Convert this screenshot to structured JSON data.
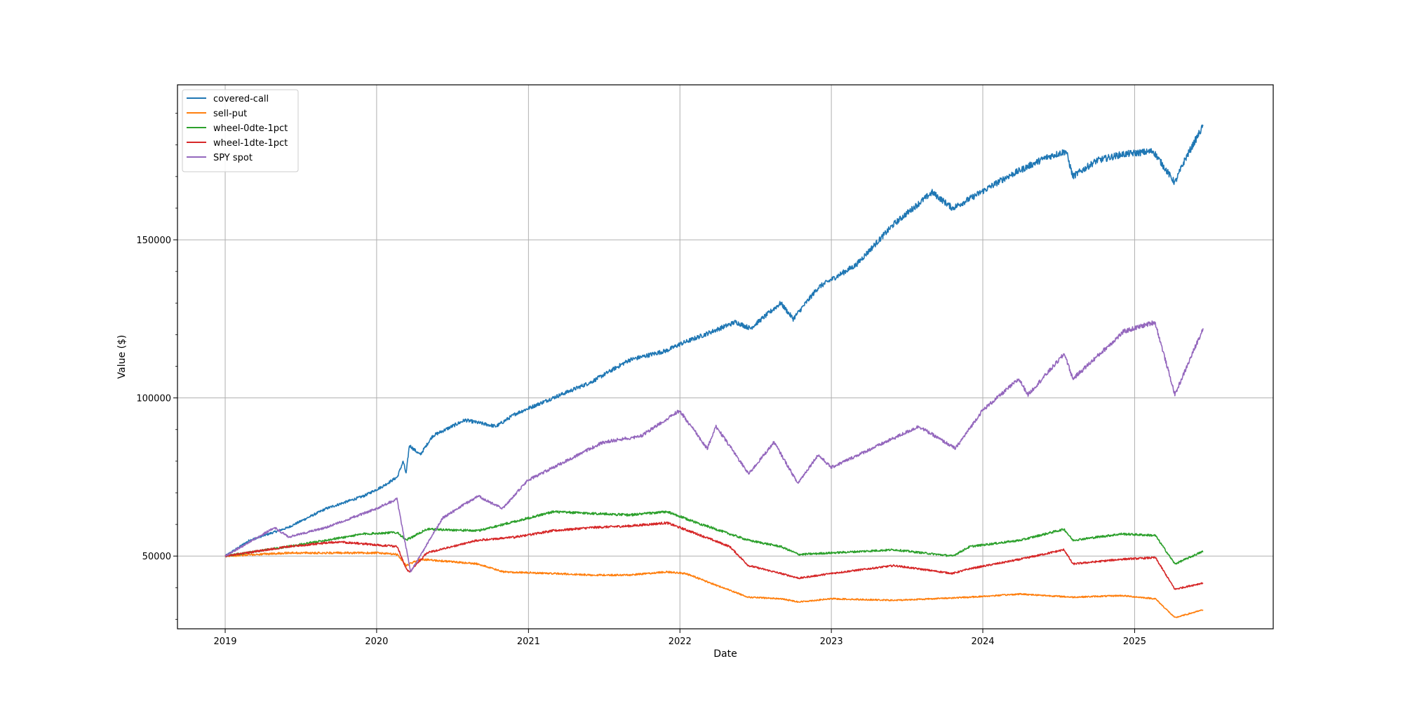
{
  "chart_data": {
    "type": "line",
    "xlabel": "Date",
    "ylabel": "Value ($)",
    "x_ticks": [
      "2019",
      "2020",
      "2021",
      "2022",
      "2023",
      "2024",
      "2025"
    ],
    "y_ticks": [
      50000,
      100000,
      150000
    ],
    "xlim": [
      "2018-09-08",
      "2025-12-01"
    ],
    "ylim": [
      27000,
      199000
    ],
    "grid": true,
    "legend_position": "upper left",
    "series": [
      {
        "name": "covered-call",
        "color": "#1f77b4",
        "points": [
          [
            "2019-01-01",
            50000
          ],
          [
            "2019-03-01",
            55000
          ],
          [
            "2019-06-01",
            59000
          ],
          [
            "2019-09-01",
            65000
          ],
          [
            "2019-12-01",
            69000
          ],
          [
            "2020-01-15",
            72000
          ],
          [
            "2020-02-20",
            75000
          ],
          [
            "2020-03-05",
            80000
          ],
          [
            "2020-03-12",
            76000
          ],
          [
            "2020-03-20",
            85000
          ],
          [
            "2020-04-15",
            82000
          ],
          [
            "2020-05-15",
            88000
          ],
          [
            "2020-08-01",
            93000
          ],
          [
            "2020-10-15",
            91000
          ],
          [
            "2020-12-01",
            95000
          ],
          [
            "2021-03-01",
            100000
          ],
          [
            "2021-06-01",
            105000
          ],
          [
            "2021-09-01",
            112000
          ],
          [
            "2021-12-01",
            115000
          ],
          [
            "2022-01-01",
            117000
          ],
          [
            "2022-03-01",
            120000
          ],
          [
            "2022-05-15",
            124000
          ],
          [
            "2022-06-20",
            122000
          ],
          [
            "2022-09-01",
            130000
          ],
          [
            "2022-10-01",
            125000
          ],
          [
            "2022-12-01",
            135000
          ],
          [
            "2023-03-01",
            142000
          ],
          [
            "2023-06-01",
            155000
          ],
          [
            "2023-09-01",
            165000
          ],
          [
            "2023-10-20",
            160000
          ],
          [
            "2023-12-01",
            163000
          ],
          [
            "2024-03-01",
            170000
          ],
          [
            "2024-06-01",
            176000
          ],
          [
            "2024-07-20",
            178000
          ],
          [
            "2024-08-05",
            170000
          ],
          [
            "2024-10-01",
            175000
          ],
          [
            "2024-12-01",
            177000
          ],
          [
            "2025-02-15",
            178000
          ],
          [
            "2025-04-08",
            168000
          ],
          [
            "2025-05-01",
            175000
          ],
          [
            "2025-06-15",
            186000
          ]
        ]
      },
      {
        "name": "sell-put",
        "color": "#ff7f0e",
        "points": [
          [
            "2019-01-01",
            50000
          ],
          [
            "2019-06-01",
            51000
          ],
          [
            "2020-01-01",
            51000
          ],
          [
            "2020-02-20",
            50500
          ],
          [
            "2020-03-12",
            47000
          ],
          [
            "2020-04-15",
            49000
          ],
          [
            "2020-06-01",
            48500
          ],
          [
            "2020-09-01",
            47500
          ],
          [
            "2020-11-01",
            45000
          ],
          [
            "2021-03-01",
            44500
          ],
          [
            "2021-06-01",
            44000
          ],
          [
            "2021-09-01",
            44000
          ],
          [
            "2021-12-01",
            45000
          ],
          [
            "2022-01-15",
            44500
          ],
          [
            "2022-03-15",
            41500
          ],
          [
            "2022-06-15",
            37000
          ],
          [
            "2022-09-01",
            36500
          ],
          [
            "2022-10-15",
            35500
          ],
          [
            "2023-01-01",
            36500
          ],
          [
            "2023-06-01",
            36000
          ],
          [
            "2023-12-01",
            37000
          ],
          [
            "2024-04-01",
            38000
          ],
          [
            "2024-08-05",
            37000
          ],
          [
            "2024-12-01",
            37500
          ],
          [
            "2025-02-20",
            36500
          ],
          [
            "2025-04-08",
            30500
          ],
          [
            "2025-06-15",
            33000
          ]
        ]
      },
      {
        "name": "wheel-0dte-1pct",
        "color": "#2ca02c",
        "points": [
          [
            "2019-01-01",
            50000
          ],
          [
            "2019-06-01",
            53000
          ],
          [
            "2019-12-01",
            57000
          ],
          [
            "2020-02-20",
            57500
          ],
          [
            "2020-03-12",
            55000
          ],
          [
            "2020-05-01",
            58500
          ],
          [
            "2020-09-01",
            58000
          ],
          [
            "2020-12-01",
            61000
          ],
          [
            "2021-03-01",
            64000
          ],
          [
            "2021-06-01",
            63500
          ],
          [
            "2021-09-01",
            63000
          ],
          [
            "2021-12-01",
            64000
          ],
          [
            "2022-02-01",
            61000
          ],
          [
            "2022-05-01",
            57000
          ],
          [
            "2022-06-15",
            55000
          ],
          [
            "2022-09-01",
            53000
          ],
          [
            "2022-10-15",
            50500
          ],
          [
            "2023-01-01",
            51000
          ],
          [
            "2023-06-01",
            52000
          ],
          [
            "2023-10-20",
            50000
          ],
          [
            "2023-12-01",
            53000
          ],
          [
            "2024-04-01",
            55000
          ],
          [
            "2024-07-15",
            58500
          ],
          [
            "2024-08-05",
            55000
          ],
          [
            "2024-12-01",
            57000
          ],
          [
            "2025-02-20",
            56500
          ],
          [
            "2025-04-08",
            47500
          ],
          [
            "2025-06-15",
            51500
          ]
        ]
      },
      {
        "name": "wheel-1dte-1pct",
        "color": "#d62728",
        "points": [
          [
            "2019-01-01",
            50000
          ],
          [
            "2019-06-01",
            53000
          ],
          [
            "2019-10-01",
            54500
          ],
          [
            "2020-02-20",
            53000
          ],
          [
            "2020-03-12",
            46000
          ],
          [
            "2020-03-20",
            45000
          ],
          [
            "2020-05-01",
            51000
          ],
          [
            "2020-09-01",
            55000
          ],
          [
            "2020-12-01",
            56000
          ],
          [
            "2021-03-01",
            58000
          ],
          [
            "2021-06-01",
            59000
          ],
          [
            "2021-09-01",
            59500
          ],
          [
            "2021-12-01",
            60500
          ],
          [
            "2022-02-01",
            57500
          ],
          [
            "2022-05-01",
            53000
          ],
          [
            "2022-06-15",
            47000
          ],
          [
            "2022-09-01",
            44500
          ],
          [
            "2022-10-15",
            43000
          ],
          [
            "2023-01-01",
            44500
          ],
          [
            "2023-06-01",
            47000
          ],
          [
            "2023-10-20",
            44500
          ],
          [
            "2023-12-01",
            46000
          ],
          [
            "2024-04-01",
            49000
          ],
          [
            "2024-07-15",
            52000
          ],
          [
            "2024-08-05",
            47500
          ],
          [
            "2024-12-01",
            49000
          ],
          [
            "2025-02-20",
            49500
          ],
          [
            "2025-04-08",
            39500
          ],
          [
            "2025-06-15",
            41500
          ]
        ]
      },
      {
        "name": "SPY spot",
        "color": "#9467bd",
        "points": [
          [
            "2019-01-01",
            50000
          ],
          [
            "2019-04-30",
            59000
          ],
          [
            "2019-06-03",
            56000
          ],
          [
            "2019-09-01",
            59000
          ],
          [
            "2019-12-31",
            65000
          ],
          [
            "2020-02-19",
            68000
          ],
          [
            "2020-03-23",
            45000
          ],
          [
            "2020-06-08",
            62000
          ],
          [
            "2020-09-01",
            69000
          ],
          [
            "2020-10-30",
            65000
          ],
          [
            "2020-12-31",
            74000
          ],
          [
            "2021-06-30",
            86000
          ],
          [
            "2021-09-30",
            88000
          ],
          [
            "2021-12-31",
            96000
          ],
          [
            "2022-03-08",
            84000
          ],
          [
            "2022-03-29",
            91000
          ],
          [
            "2022-06-16",
            76000
          ],
          [
            "2022-08-16",
            86000
          ],
          [
            "2022-10-12",
            73000
          ],
          [
            "2022-11-30",
            82000
          ],
          [
            "2023-01-01",
            78000
          ],
          [
            "2023-07-31",
            91000
          ],
          [
            "2023-10-27",
            84000
          ],
          [
            "2023-12-31",
            96000
          ],
          [
            "2024-03-28",
            106000
          ],
          [
            "2024-04-19",
            101000
          ],
          [
            "2024-07-16",
            114000
          ],
          [
            "2024-08-05",
            106000
          ],
          [
            "2024-12-06",
            121000
          ],
          [
            "2025-02-19",
            124000
          ],
          [
            "2025-04-08",
            101000
          ],
          [
            "2025-06-15",
            122000
          ]
        ]
      }
    ]
  }
}
